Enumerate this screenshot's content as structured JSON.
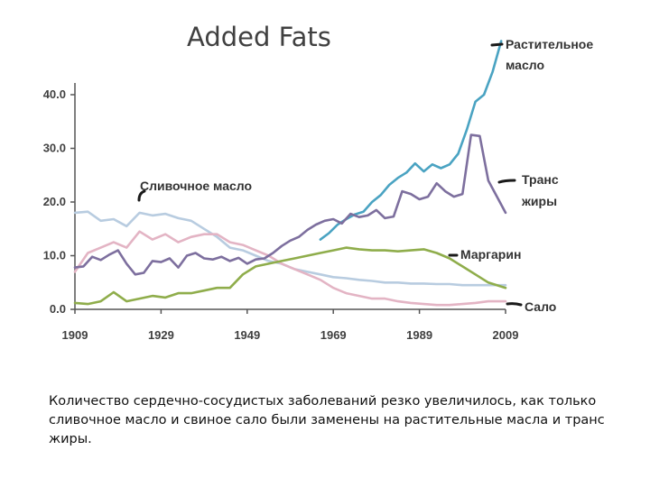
{
  "chart_data": {
    "type": "line",
    "title": "Added Fats",
    "xlabel": "",
    "ylabel": "",
    "xlim": [
      1909,
      2009
    ],
    "ylim": [
      0,
      40
    ],
    "x_ticks": [
      "1909",
      "1929",
      "1949",
      "1969",
      "1989",
      "2009"
    ],
    "y_ticks": [
      "0.0",
      "10.0",
      "20.0",
      "30.0",
      "40.0"
    ],
    "series": [
      {
        "name": "Растительное масло",
        "label_line1": "Растительное",
        "label_line2": "масло",
        "color": "#4aa3c2",
        "x": [
          1966,
          1968,
          1970,
          1972,
          1974,
          1976,
          1978,
          1980,
          1982,
          1984,
          1986,
          1988,
          1990,
          1992,
          1994,
          1996,
          1998,
          2000,
          2002,
          2004,
          2006,
          2008
        ],
        "values": [
          13.0,
          14.2,
          15.8,
          16.8,
          17.7,
          18.2,
          20.0,
          21.3,
          23.2,
          24.5,
          25.5,
          27.2,
          25.7,
          27.0,
          26.3,
          27.0,
          29.0,
          33.5,
          38.7,
          40.0,
          44.3,
          50.0
        ]
      },
      {
        "name": "Транс жиры",
        "label_line1": "Транс",
        "label_line2": "жиры",
        "color": "#7d6f9e",
        "x": [
          1909,
          1911,
          1913,
          1915,
          1917,
          1919,
          1921,
          1923,
          1925,
          1927,
          1929,
          1931,
          1933,
          1935,
          1937,
          1939,
          1941,
          1943,
          1945,
          1947,
          1949,
          1951,
          1953,
          1955,
          1957,
          1959,
          1961,
          1963,
          1965,
          1967,
          1969,
          1971,
          1973,
          1975,
          1977,
          1979,
          1981,
          1983,
          1985,
          1987,
          1989,
          1991,
          1993,
          1995,
          1997,
          1999,
          2001,
          2003,
          2005,
          2007,
          2009
        ],
        "values": [
          7.8,
          8.0,
          9.8,
          9.2,
          10.2,
          11.0,
          8.5,
          6.5,
          6.8,
          9.0,
          8.8,
          9.5,
          7.8,
          10.0,
          10.5,
          9.5,
          9.3,
          9.8,
          9.0,
          9.6,
          8.5,
          9.3,
          9.5,
          10.5,
          11.8,
          12.8,
          13.5,
          14.8,
          15.8,
          16.5,
          16.8,
          16.0,
          17.8,
          17.2,
          17.5,
          18.5,
          17.0,
          17.3,
          22.0,
          21.5,
          20.5,
          21.0,
          23.5,
          22.0,
          21.0,
          21.5,
          32.5,
          32.3,
          24.0,
          21.0,
          18.0
        ]
      },
      {
        "name": "Сливочное масло",
        "label": "Сливочное масло",
        "color": "#b8cce0",
        "x": [
          1909,
          1912,
          1915,
          1918,
          1921,
          1924,
          1927,
          1930,
          1933,
          1936,
          1939,
          1942,
          1945,
          1948,
          1951,
          1954,
          1957,
          1960,
          1963,
          1966,
          1969,
          1972,
          1975,
          1978,
          1981,
          1984,
          1987,
          1990,
          1993,
          1996,
          1999,
          2002,
          2005,
          2009
        ],
        "values": [
          18.0,
          18.2,
          16.5,
          16.8,
          15.5,
          18.0,
          17.5,
          17.8,
          17.0,
          16.5,
          15.0,
          13.5,
          11.5,
          11.0,
          10.0,
          9.0,
          8.5,
          7.5,
          7.0,
          6.5,
          6.0,
          5.8,
          5.5,
          5.3,
          5.0,
          5.0,
          4.8,
          4.8,
          4.7,
          4.7,
          4.5,
          4.5,
          4.5,
          4.5
        ]
      },
      {
        "name": "Маргарин",
        "label": "Маргарин",
        "color": "#8fad4b",
        "x": [
          1909,
          1912,
          1915,
          1918,
          1921,
          1924,
          1927,
          1930,
          1933,
          1936,
          1939,
          1942,
          1945,
          1948,
          1951,
          1954,
          1957,
          1960,
          1963,
          1966,
          1969,
          1972,
          1975,
          1978,
          1981,
          1984,
          1987,
          1990,
          1993,
          1996,
          1999,
          2002,
          2005,
          2009
        ],
        "values": [
          1.2,
          1.0,
          1.5,
          3.2,
          1.5,
          2.0,
          2.5,
          2.2,
          3.0,
          3.0,
          3.5,
          4.0,
          4.0,
          6.5,
          8.0,
          8.5,
          9.0,
          9.5,
          10.0,
          10.5,
          11.0,
          11.5,
          11.2,
          11.0,
          11.0,
          10.8,
          11.0,
          11.2,
          10.5,
          9.5,
          8.0,
          6.5,
          5.0,
          4.0
        ]
      },
      {
        "name": "Сало",
        "label": "Сало",
        "color": "#e3b4c4",
        "x": [
          1909,
          1912,
          1915,
          1918,
          1921,
          1924,
          1927,
          1930,
          1933,
          1936,
          1939,
          1942,
          1945,
          1948,
          1951,
          1954,
          1957,
          1960,
          1963,
          1966,
          1969,
          1972,
          1975,
          1978,
          1981,
          1984,
          1987,
          1990,
          1993,
          1996,
          1999,
          2002,
          2005,
          2009
        ],
        "values": [
          7.0,
          10.5,
          11.5,
          12.5,
          11.5,
          14.5,
          13.0,
          14.0,
          12.5,
          13.5,
          14.0,
          14.0,
          12.5,
          12.0,
          11.0,
          10.0,
          8.5,
          7.5,
          6.5,
          5.5,
          4.0,
          3.0,
          2.5,
          2.0,
          2.0,
          1.5,
          1.2,
          1.0,
          0.8,
          0.8,
          1.0,
          1.2,
          1.5,
          1.5
        ]
      }
    ]
  },
  "caption": "Количество сердечно-сосудистых заболеваний резко увеличилось, как только сливочное масло и свиное сало были заменены на растительные масла и транс жиры."
}
